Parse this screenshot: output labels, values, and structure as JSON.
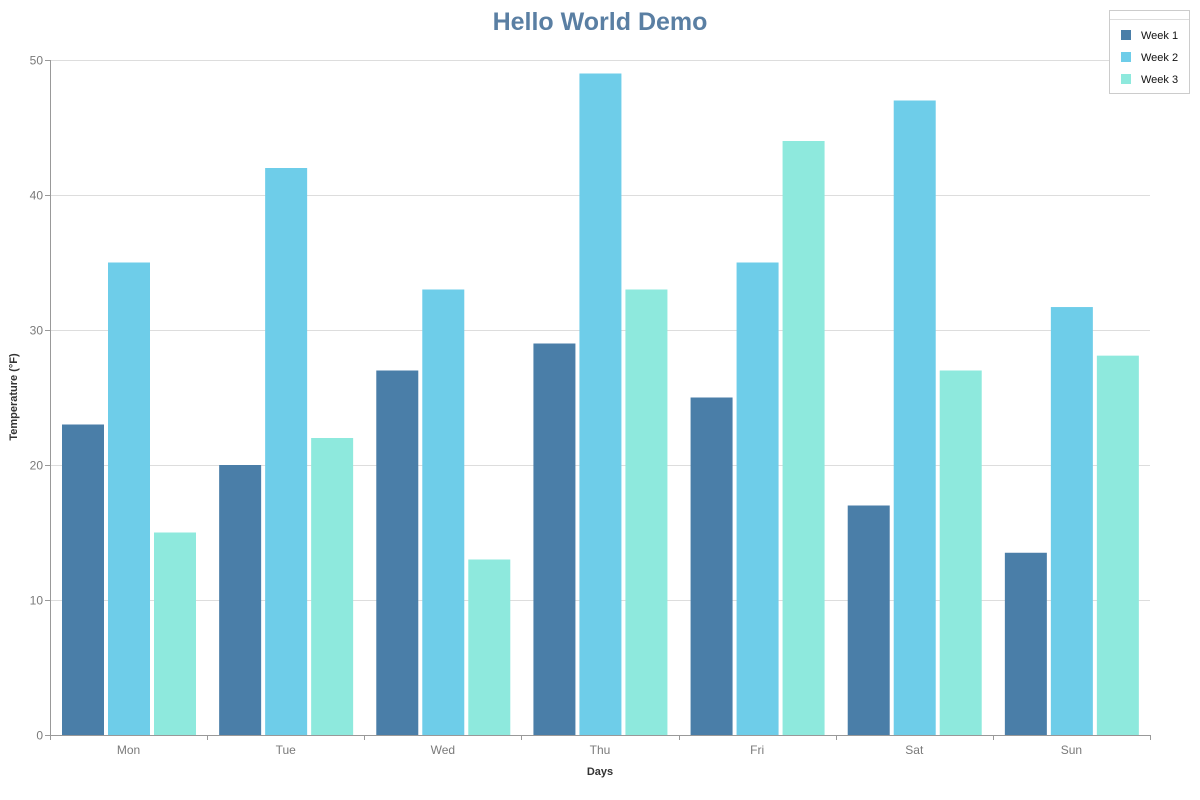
{
  "chart_data": {
    "type": "bar",
    "title": "Hello World Demo",
    "xlabel": "Days",
    "ylabel": "Temperature (°F)",
    "categories": [
      "Mon",
      "Tue",
      "Wed",
      "Thu",
      "Fri",
      "Sat",
      "Sun"
    ],
    "series": [
      {
        "name": "Week 1",
        "color": "#4a7ea8",
        "values": [
          23,
          20,
          27,
          29,
          25,
          17,
          13.5
        ]
      },
      {
        "name": "Week 2",
        "color": "#6ecde9",
        "values": [
          35,
          42,
          33,
          49,
          35,
          47,
          31.7
        ]
      },
      {
        "name": "Week 3",
        "color": "#8ee9dd",
        "values": [
          15,
          22,
          13,
          33,
          44,
          27,
          28.1
        ]
      }
    ],
    "ylim": [
      0,
      50
    ],
    "yticks": [
      0,
      10,
      20,
      30,
      40,
      50
    ],
    "grid": true,
    "legend_position": "top-right"
  }
}
